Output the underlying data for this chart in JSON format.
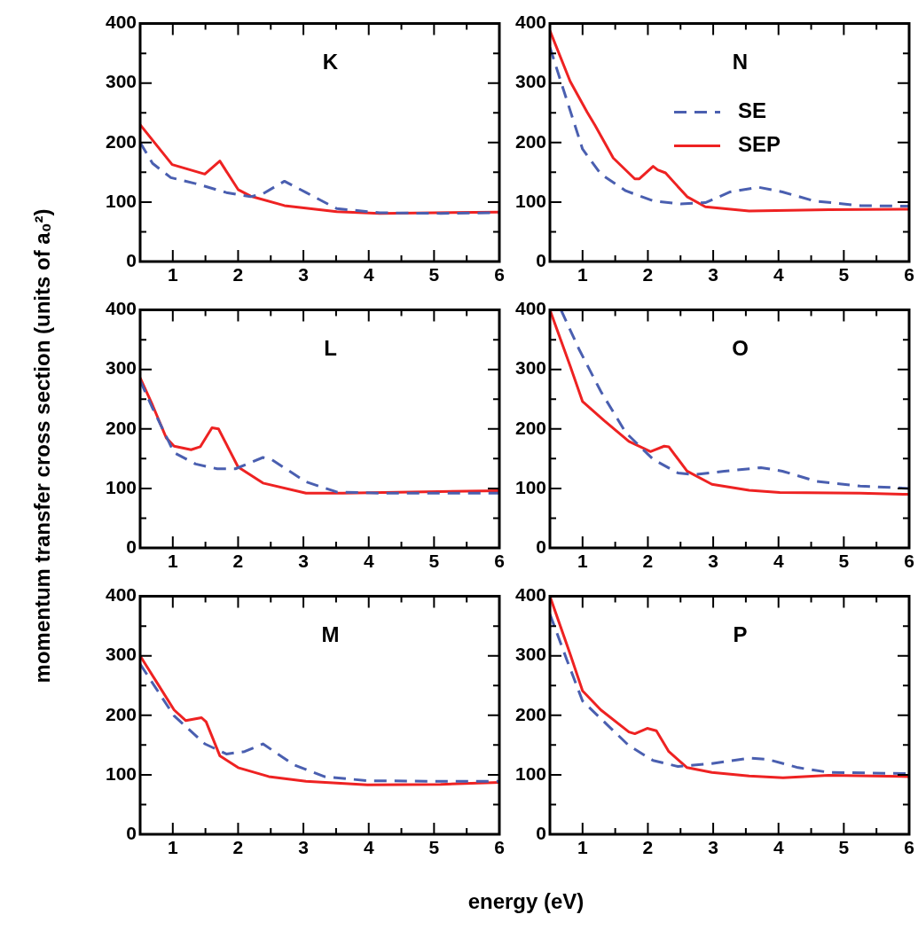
{
  "chart_data": [
    {
      "type": "line",
      "title": "K",
      "xlim": [
        0.5,
        6
      ],
      "ylim": [
        0,
        400
      ],
      "xticks": [
        1,
        {
          "value": 1.5,
          "label": null
        },
        2,
        {
          "value": 2.5,
          "label": null
        },
        3,
        {
          "value": 3.5,
          "label": null
        },
        4,
        {
          "value": 4.5,
          "label": null
        },
        5,
        {
          "value": 5.5,
          "label": null
        },
        6
      ],
      "yticks": [
        0,
        {
          "value": 50,
          "label": null
        },
        100,
        {
          "value": 150,
          "label": null
        },
        200,
        {
          "value": 250,
          "label": null
        },
        300,
        {
          "value": 350,
          "label": null
        },
        400
      ],
      "series": [
        {
          "color": "#4a5fb0",
          "line_style": "dashed",
          "x": [
            0.5,
            0.69,
            0.97,
            1.35,
            1.82,
            2.19,
            2.38,
            2.71,
            3.04,
            3.51,
            4.17,
            5.1,
            6
          ],
          "values": [
            200,
            165,
            141,
            131,
            116,
            109,
            114,
            135,
            116,
            89,
            82,
            81,
            82
          ]
        },
        {
          "color": "#ee2222",
          "line_style": "solid",
          "x": [
            0.5,
            0.99,
            1.49,
            1.72,
            2.0,
            2.19,
            2.71,
            3.51,
            4.17,
            5.1,
            6
          ],
          "values": [
            230,
            163,
            147,
            169,
            121,
            110,
            94,
            84,
            81,
            null,
            83
          ]
        }
      ]
    },
    {
      "type": "line",
      "title": "N",
      "xlim": [
        0.5,
        6
      ],
      "ylim": [
        0,
        400
      ],
      "legend": "top right",
      "xticks": [
        1,
        {
          "value": 1.5,
          "label": null
        },
        2,
        {
          "value": 2.5,
          "label": null
        },
        3,
        {
          "value": 3.5,
          "label": null
        },
        4,
        {
          "value": 4.5,
          "label": null
        },
        5,
        {
          "value": 5.5,
          "label": null
        },
        6
      ],
      "yticks": [
        0,
        {
          "value": 50,
          "label": null
        },
        100,
        {
          "value": 150,
          "label": null
        },
        200,
        {
          "value": 250,
          "label": null
        },
        300,
        {
          "value": 350,
          "label": null
        },
        400
      ],
      "series": [
        {
          "name": "SE",
          "color": "#4a5fb0",
          "line_style": "dashed",
          "x": [
            0.5,
            0.71,
            1.0,
            1.28,
            1.66,
            2.08,
            2.5,
            2.88,
            3.26,
            3.69,
            4.06,
            4.54,
            5.25,
            6
          ],
          "values": [
            360,
            288,
            189,
            147,
            119,
            102,
            97,
            99,
            117,
            125,
            117,
            102,
            94,
            93
          ]
        },
        {
          "name": "SEP",
          "color": "#ee2222",
          "line_style": "solid",
          "x": [
            0.5,
            0.81,
            1.07,
            1.19,
            1.47,
            1.8,
            1.87,
            2.08,
            2.15,
            2.27,
            2.6,
            2.88,
            3.55,
            4.77,
            6
          ],
          "values": [
            388,
            303,
            251,
            229,
            174,
            139,
            139,
            160,
            154,
            149,
            109,
            92,
            85,
            87,
            88
          ]
        }
      ]
    },
    {
      "type": "line",
      "title": "L",
      "xlim": [
        0.5,
        6
      ],
      "ylim": [
        0,
        400
      ],
      "ylabel": "momentum transfer cross section (units of a₀²)",
      "xticks": [
        1,
        {
          "value": 1.5,
          "label": null
        },
        2,
        {
          "value": 2.5,
          "label": null
        },
        3,
        {
          "value": 3.5,
          "label": null
        },
        4,
        {
          "value": 4.5,
          "label": null
        },
        5,
        {
          "value": 5.5,
          "label": null
        },
        6
      ],
      "yticks": [
        0,
        {
          "value": 50,
          "label": null
        },
        100,
        {
          "value": 150,
          "label": null
        },
        200,
        {
          "value": 250,
          "label": null
        },
        300,
        {
          "value": 350,
          "label": null
        },
        400
      ],
      "series": [
        {
          "color": "#4a5fb0",
          "line_style": "dashed",
          "x": [
            0.5,
            0.69,
            1.02,
            1.35,
            1.68,
            1.96,
            2.38,
            2.52,
            3.04,
            3.51,
            4.17,
            5.1,
            6
          ],
          "values": [
            281,
            235,
            160,
            141,
            133,
            133,
            152,
            148,
            111,
            94,
            92,
            92,
            92
          ]
        },
        {
          "color": "#ee2222",
          "line_style": "solid",
          "x": [
            0.5,
            0.69,
            0.9,
            1.02,
            1.28,
            1.42,
            1.6,
            1.7,
            2.0,
            2.38,
            3.04,
            3.6,
            4.64,
            6
          ],
          "values": [
            286,
            240,
            185,
            171,
            165,
            170,
            202,
            200,
            136,
            109,
            92,
            92,
            94,
            96
          ]
        }
      ]
    },
    {
      "type": "line",
      "title": "O",
      "xlim": [
        0.5,
        6
      ],
      "ylim": [
        0,
        400
      ],
      "xticks": [
        1,
        {
          "value": 1.5,
          "label": null
        },
        2,
        {
          "value": 2.5,
          "label": null
        },
        3,
        {
          "value": 3.5,
          "label": null
        },
        4,
        {
          "value": 4.5,
          "label": null
        },
        5,
        {
          "value": 5.5,
          "label": null
        },
        6
      ],
      "yticks": [
        0,
        {
          "value": 50,
          "label": null
        },
        100,
        {
          "value": 150,
          "label": null
        },
        200,
        {
          "value": 250,
          "label": null
        },
        300,
        {
          "value": 350,
          "label": null
        },
        400
      ],
      "series": [
        {
          "color": "#4a5fb0",
          "line_style": "dashed",
          "x": [
            0.67,
            0.95,
            1.28,
            1.66,
            2.08,
            2.46,
            2.7,
            3.17,
            3.73,
            4.06,
            4.58,
            5.25,
            6
          ],
          "values": [
            400,
            333,
            263,
            194,
            149,
            126,
            123,
            129,
            135,
            129,
            112,
            104,
            100
          ]
        },
        {
          "color": "#ee2222",
          "line_style": "solid",
          "x": [
            0.5,
            0.81,
            1.0,
            1.33,
            1.71,
            2.04,
            2.25,
            2.32,
            2.6,
            2.98,
            3.55,
            4.02,
            5.25,
            6
          ],
          "values": [
            400,
            306,
            246,
            214,
            179,
            162,
            171,
            170,
            129,
            107,
            97,
            93,
            92,
            90
          ]
        }
      ]
    },
    {
      "type": "line",
      "title": "M",
      "xlim": [
        0.5,
        6
      ],
      "ylim": [
        0,
        400
      ],
      "xlabel": "energy (eV)",
      "xticks": [
        1,
        {
          "value": 1.5,
          "label": null
        },
        2,
        {
          "value": 2.5,
          "label": null
        },
        3,
        {
          "value": 3.5,
          "label": null
        },
        4,
        {
          "value": 4.5,
          "label": null
        },
        5,
        {
          "value": 5.5,
          "label": null
        },
        6
      ],
      "yticks": [
        0,
        {
          "value": 50,
          "label": null
        },
        100,
        {
          "value": 150,
          "label": null
        },
        200,
        {
          "value": 250,
          "label": null
        },
        300,
        {
          "value": 350,
          "label": null
        },
        400
      ],
      "series": [
        {
          "color": "#4a5fb0",
          "line_style": "dashed",
          "x": [
            0.5,
            1.02,
            1.49,
            1.82,
            2.1,
            2.38,
            2.85,
            3.32,
            3.98,
            5.1,
            6
          ],
          "values": [
            286,
            199,
            152,
            135,
            139,
            152,
            117,
            97,
            90,
            89,
            89
          ]
        },
        {
          "color": "#ee2222",
          "line_style": "solid",
          "x": [
            0.5,
            0.74,
            1.02,
            1.2,
            1.44,
            1.51,
            1.72,
            2.0,
            2.47,
            3.04,
            3.98,
            5.1,
            6
          ],
          "values": [
            300,
            258,
            209,
            191,
            196,
            189,
            132,
            112,
            97,
            89,
            83,
            84,
            87
          ]
        }
      ]
    },
    {
      "type": "line",
      "title": "P",
      "xlim": [
        0.5,
        6
      ],
      "ylim": [
        0,
        400
      ],
      "xticks": [
        1,
        {
          "value": 1.5,
          "label": null
        },
        2,
        {
          "value": 2.5,
          "label": null
        },
        3,
        {
          "value": 3.5,
          "label": null
        },
        4,
        {
          "value": 4.5,
          "label": null
        },
        5,
        {
          "value": 5.5,
          "label": null
        },
        6
      ],
      "yticks": [
        0,
        {
          "value": 50,
          "label": null
        },
        100,
        {
          "value": 150,
          "label": null
        },
        200,
        {
          "value": 250,
          "label": null
        },
        300,
        {
          "value": 350,
          "label": null
        },
        400
      ],
      "series": [
        {
          "color": "#4a5fb0",
          "line_style": "dashed",
          "x": [
            0.5,
            0.76,
            1.0,
            1.33,
            1.71,
            2.08,
            2.46,
            2.98,
            3.55,
            3.83,
            4.3,
            4.77,
            6
          ],
          "values": [
            370,
            293,
            224,
            189,
            149,
            124,
            114,
            119,
            128,
            126,
            112,
            104,
            102
          ]
        },
        {
          "color": "#ee2222",
          "line_style": "solid",
          "x": [
            0.5,
            0.81,
            1.0,
            1.28,
            1.71,
            1.8,
            1.99,
            2.13,
            2.32,
            2.6,
            2.98,
            3.55,
            4.07,
            4.77,
            6
          ],
          "values": [
            400,
            303,
            241,
            209,
            172,
            169,
            178,
            174,
            139,
            112,
            104,
            98,
            95,
            99,
            97
          ]
        }
      ]
    }
  ]
}
